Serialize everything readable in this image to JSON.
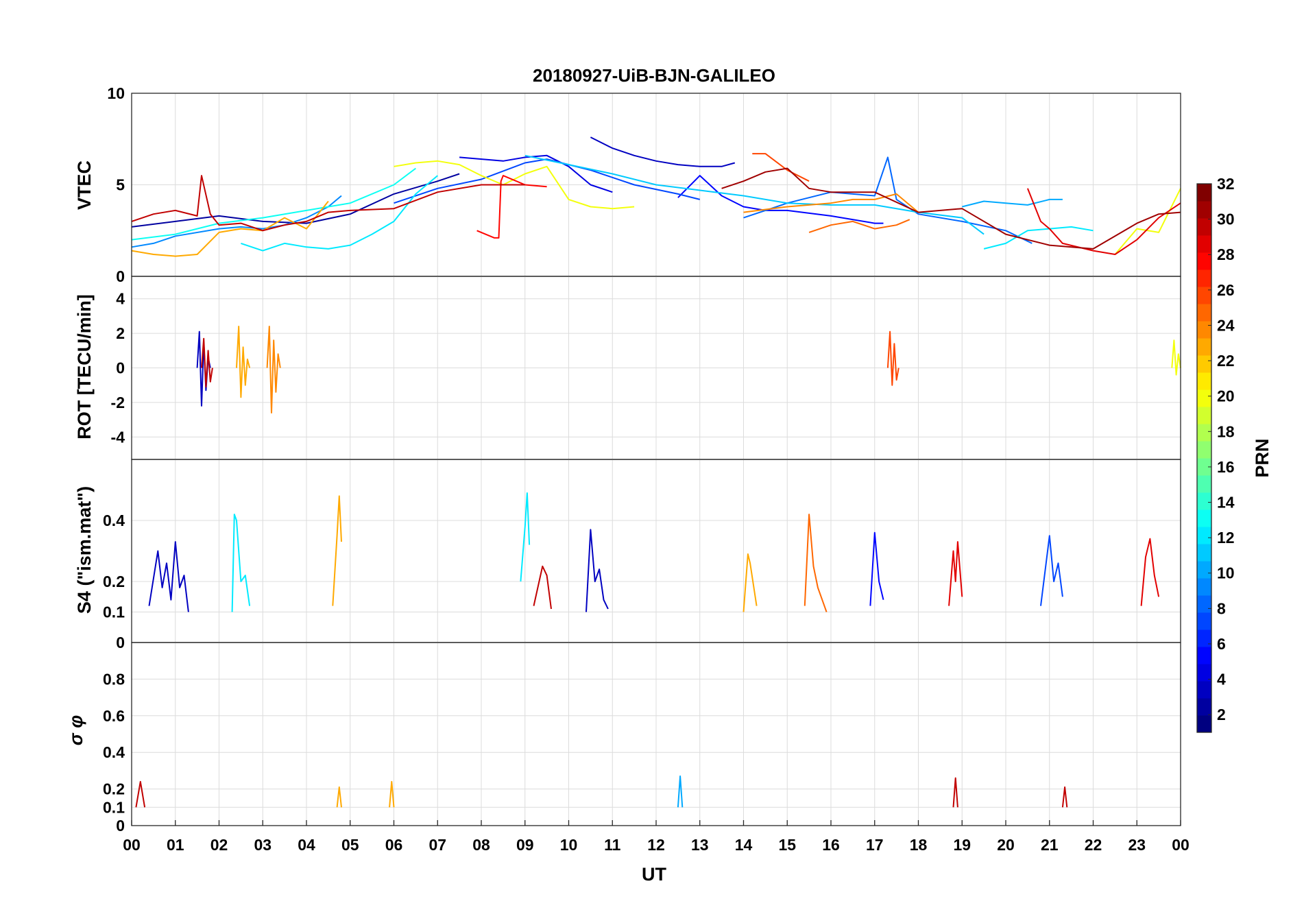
{
  "figure": {
    "title": "20180927-UiB-BJN-GALILEO",
    "x_ticks": [
      "00",
      "01",
      "02",
      "03",
      "04",
      "05",
      "06",
      "07",
      "08",
      "09",
      "10",
      "11",
      "12",
      "13",
      "14",
      "15",
      "16",
      "17",
      "18",
      "19",
      "20",
      "21",
      "22",
      "23",
      "00"
    ],
    "x_label": "UT",
    "colorbar": {
      "label": "PRN",
      "range": [
        1,
        32
      ],
      "ticks": [
        "2",
        "4",
        "6",
        "8",
        "10",
        "12",
        "14",
        "16",
        "18",
        "20",
        "22",
        "24",
        "26",
        "28",
        "30",
        "32"
      ],
      "colormap": "jet"
    }
  },
  "chart_data": [
    {
      "type": "line",
      "panel": "vtec",
      "ylabel": "VTEC",
      "ylim": [
        0,
        10
      ],
      "yticks": [
        "0",
        "5",
        "10"
      ],
      "xlim": [
        0,
        24
      ],
      "series": [
        {
          "prn": 2,
          "x": [
            0.0,
            1.0,
            2.0,
            3.0,
            4.0,
            5.0,
            6.0,
            7.0,
            7.5
          ],
          "values": [
            2.7,
            3.0,
            3.3,
            3.0,
            2.9,
            3.4,
            4.5,
            5.2,
            5.6
          ]
        },
        {
          "prn": 4,
          "x": [
            7.5,
            8.5,
            9.0,
            9.5,
            10.0,
            10.5,
            11.0
          ],
          "values": [
            6.5,
            6.3,
            6.5,
            6.6,
            6.0,
            5.0,
            4.6
          ]
        },
        {
          "prn": 3,
          "x": [
            10.5,
            11.0,
            11.5,
            12.0,
            12.5,
            13.0,
            13.5,
            13.8
          ],
          "values": [
            7.6,
            7.0,
            6.6,
            6.3,
            6.1,
            6.0,
            6.0,
            6.2
          ]
        },
        {
          "prn": 5,
          "x": [
            12.5,
            13.0,
            13.5,
            14.0,
            14.5,
            15.0,
            16.0,
            17.0,
            17.2
          ],
          "values": [
            4.3,
            5.5,
            4.4,
            3.8,
            3.6,
            3.6,
            3.3,
            2.9,
            2.9
          ]
        },
        {
          "prn": 7,
          "x": [
            6.0,
            7.0,
            8.0,
            9.0,
            9.5,
            10.5,
            11.5,
            12.5,
            13.0
          ],
          "values": [
            4.0,
            4.8,
            5.3,
            6.2,
            6.4,
            5.8,
            5.0,
            4.5,
            4.2
          ]
        },
        {
          "prn": 8,
          "x": [
            14.0,
            15.0,
            16.0,
            16.5,
            17.0,
            17.3,
            17.5,
            18.0,
            19.0,
            20.0,
            20.6
          ],
          "values": [
            3.2,
            4.0,
            4.6,
            4.5,
            4.4,
            6.5,
            4.2,
            3.4,
            3.0,
            2.5,
            1.8
          ]
        },
        {
          "prn": 9,
          "x": [
            0.0,
            0.5,
            1.0,
            2.0,
            2.5,
            3.0,
            3.5,
            4.0,
            4.5,
            4.8
          ],
          "values": [
            1.6,
            1.8,
            2.2,
            2.6,
            2.7,
            2.6,
            2.8,
            3.2,
            3.8,
            4.4
          ]
        },
        {
          "prn": 10,
          "x": [
            19.0,
            19.5,
            20.0,
            20.5,
            21.0,
            21.3
          ],
          "values": [
            3.8,
            4.1,
            4.0,
            3.9,
            4.2,
            4.2
          ]
        },
        {
          "prn": 11,
          "x": [
            9.0,
            10.0,
            11.0,
            12.0,
            13.0,
            14.0,
            15.0,
            16.0,
            17.0,
            18.0,
            19.0,
            19.5
          ],
          "values": [
            6.6,
            6.1,
            5.6,
            5.0,
            4.7,
            4.4,
            4.0,
            3.9,
            3.9,
            3.5,
            3.2,
            2.3
          ]
        },
        {
          "prn": 12,
          "x": [
            2.5,
            3.0,
            3.5,
            4.0,
            4.5,
            5.0,
            5.5,
            6.0,
            6.5,
            7.0
          ],
          "values": [
            1.8,
            1.4,
            1.8,
            1.6,
            1.5,
            1.7,
            2.3,
            3.0,
            4.5,
            5.5
          ]
        },
        {
          "prn": 13,
          "x": [
            0.0,
            1.0,
            2.0,
            3.0,
            4.0,
            5.0,
            6.0,
            6.5
          ],
          "values": [
            2.0,
            2.3,
            2.9,
            3.2,
            3.6,
            4.0,
            5.0,
            5.9
          ]
        },
        {
          "prn": 12,
          "x": [
            19.5,
            20.0,
            20.5,
            21.0,
            21.5,
            22.0
          ],
          "values": [
            1.5,
            1.8,
            2.5,
            2.6,
            2.7,
            2.5
          ]
        },
        {
          "prn": 20,
          "x": [
            6.0,
            6.5,
            7.0,
            7.5,
            8.0,
            8.5,
            9.0,
            9.5,
            10.0,
            10.5,
            11.0,
            11.5
          ],
          "values": [
            6.0,
            6.2,
            6.3,
            6.1,
            5.5,
            5.0,
            5.6,
            6.0,
            4.2,
            3.8,
            3.7,
            3.8
          ]
        },
        {
          "prn": 20,
          "x": [
            22.5,
            23.0,
            23.5,
            24.0
          ],
          "values": [
            1.2,
            2.6,
            2.4,
            4.8
          ]
        },
        {
          "prn": 23,
          "x": [
            0.0,
            0.5,
            1.0,
            1.5,
            2.0,
            2.5,
            3.0,
            3.5,
            4.0,
            4.5
          ],
          "values": [
            1.4,
            1.2,
            1.1,
            1.2,
            2.4,
            2.6,
            2.5,
            3.2,
            2.6,
            4.1
          ]
        },
        {
          "prn": 24,
          "x": [
            14.0,
            15.0,
            16.0,
            16.5,
            17.0,
            17.5,
            18.0
          ],
          "values": [
            3.5,
            3.8,
            4.0,
            4.2,
            4.2,
            4.5,
            3.5
          ]
        },
        {
          "prn": 25,
          "x": [
            15.5,
            16.0,
            16.5,
            17.0,
            17.5,
            17.8
          ],
          "values": [
            2.4,
            2.8,
            3.0,
            2.6,
            2.8,
            3.1
          ]
        },
        {
          "prn": 26,
          "x": [
            14.2,
            14.5,
            15.0,
            15.5
          ],
          "values": [
            6.7,
            6.7,
            5.8,
            5.2
          ]
        },
        {
          "prn": 28,
          "x": [
            7.9,
            8.3,
            8.4,
            8.45,
            8.5,
            9.0,
            9.5
          ],
          "values": [
            2.5,
            2.1,
            2.1,
            5.2,
            5.5,
            5.0,
            4.9
          ]
        },
        {
          "prn": 29,
          "x": [
            20.5,
            20.8,
            21.0,
            21.3,
            22.0,
            22.5,
            23.0,
            23.5,
            24.0
          ],
          "values": [
            4.8,
            3.0,
            2.6,
            1.8,
            1.4,
            1.2,
            2.0,
            3.2,
            4.0
          ]
        },
        {
          "prn": 30,
          "x": [
            0.0,
            0.5,
            1.0,
            1.5,
            1.6,
            1.8,
            2.0,
            2.5,
            3.0,
            3.5,
            4.0,
            4.5,
            5.0,
            6.0,
            7.0,
            8.0,
            9.0
          ],
          "values": [
            3.0,
            3.4,
            3.6,
            3.3,
            5.5,
            3.4,
            2.8,
            2.9,
            2.5,
            2.8,
            3.0,
            3.5,
            3.6,
            3.7,
            4.6,
            5.0,
            5.0
          ]
        },
        {
          "prn": 31,
          "x": [
            13.5,
            14.0,
            14.5,
            15.0,
            15.5,
            16.0,
            17.0,
            18.0,
            19.0,
            20.0,
            21.0,
            22.0,
            23.0,
            23.5,
            24.0
          ],
          "values": [
            4.8,
            5.2,
            5.7,
            5.9,
            4.8,
            4.6,
            4.6,
            3.5,
            3.7,
            2.3,
            1.7,
            1.5,
            2.9,
            3.4,
            3.5
          ]
        }
      ]
    },
    {
      "type": "line",
      "panel": "rot",
      "ylabel": "ROT [TECU/min]",
      "ylim": [
        -5.3,
        5.3
      ],
      "yticks": [
        "-4",
        "-2",
        "0",
        "2",
        "4"
      ],
      "xlim": [
        0,
        24
      ],
      "series": [
        {
          "prn": 3,
          "x": [
            1.5,
            1.55,
            1.6,
            1.65,
            1.7,
            1.75,
            1.8
          ],
          "values": [
            0.0,
            2.1,
            -2.2,
            1.5,
            -1.3,
            0.6,
            0.0
          ]
        },
        {
          "prn": 23,
          "x": [
            2.4,
            2.45,
            2.5,
            2.55,
            2.6,
            2.65,
            2.7
          ],
          "values": [
            0.0,
            2.4,
            -1.7,
            1.2,
            -1.0,
            0.5,
            0.0
          ]
        },
        {
          "prn": 24,
          "x": [
            3.1,
            3.15,
            3.2,
            3.25,
            3.3,
            3.35,
            3.4
          ],
          "values": [
            0.0,
            2.4,
            -2.6,
            1.6,
            -1.4,
            0.8,
            0.0
          ]
        },
        {
          "prn": 30,
          "x": [
            1.6,
            1.65,
            1.7,
            1.75,
            1.8,
            1.85
          ],
          "values": [
            0.0,
            1.7,
            -1.1,
            1.0,
            -0.8,
            0.0
          ]
        },
        {
          "prn": 26,
          "x": [
            17.3,
            17.35,
            17.4,
            17.45,
            17.5,
            17.55
          ],
          "values": [
            0.0,
            2.1,
            -1.0,
            1.4,
            -0.7,
            0.0
          ]
        },
        {
          "prn": 20,
          "x": [
            23.8,
            23.85,
            23.9,
            23.95,
            24.0
          ],
          "values": [
            0.0,
            1.6,
            -0.4,
            0.8,
            0.0
          ]
        }
      ]
    },
    {
      "type": "line",
      "panel": "s4",
      "ylabel": "S4 (\"ism.mat\")",
      "ylim": [
        0,
        0.6
      ],
      "yticks": [
        "0",
        "0.1",
        "0.2",
        "0.4"
      ],
      "xlim": [
        0,
        24
      ],
      "series": [
        {
          "prn": 3,
          "x": [
            0.4,
            0.6,
            0.7,
            0.8,
            0.9,
            1.0,
            1.1,
            1.2,
            1.3
          ],
          "values": [
            0.12,
            0.3,
            0.18,
            0.26,
            0.14,
            0.33,
            0.18,
            0.22,
            0.1
          ]
        },
        {
          "prn": 12,
          "x": [
            2.3,
            2.35,
            2.4,
            2.5,
            2.6,
            2.7
          ],
          "values": [
            0.1,
            0.42,
            0.4,
            0.2,
            0.22,
            0.12
          ]
        },
        {
          "prn": 23,
          "x": [
            4.6,
            4.7,
            4.75,
            4.8
          ],
          "values": [
            0.12,
            0.35,
            0.48,
            0.33
          ]
        },
        {
          "prn": 12,
          "x": [
            8.9,
            9.0,
            9.05,
            9.1
          ],
          "values": [
            0.2,
            0.38,
            0.49,
            0.32
          ]
        },
        {
          "prn": 3,
          "x": [
            10.4,
            10.5,
            10.6,
            10.7,
            10.8,
            10.9
          ],
          "values": [
            0.1,
            0.37,
            0.2,
            0.24,
            0.14,
            0.11
          ]
        },
        {
          "prn": 25,
          "x": [
            15.4,
            15.5,
            15.6,
            15.7,
            15.9
          ],
          "values": [
            0.12,
            0.42,
            0.25,
            0.18,
            0.1
          ]
        },
        {
          "prn": 5,
          "x": [
            16.9,
            17.0,
            17.1,
            17.2
          ],
          "values": [
            0.12,
            0.36,
            0.2,
            0.14
          ]
        },
        {
          "prn": 7,
          "x": [
            20.8,
            21.0,
            21.1,
            21.2,
            21.3
          ],
          "values": [
            0.12,
            0.35,
            0.2,
            0.26,
            0.15
          ]
        },
        {
          "prn": 29,
          "x": [
            23.1,
            23.2,
            23.3,
            23.4,
            23.5
          ],
          "values": [
            0.12,
            0.28,
            0.34,
            0.22,
            0.15
          ]
        },
        {
          "prn": 30,
          "x": [
            9.2,
            9.4,
            9.5,
            9.6
          ],
          "values": [
            0.12,
            0.25,
            0.22,
            0.11
          ]
        },
        {
          "prn": 29,
          "x": [
            18.7,
            18.8,
            18.85,
            18.9,
            19.0
          ],
          "values": [
            0.12,
            0.3,
            0.2,
            0.33,
            0.15
          ]
        },
        {
          "prn": 23,
          "x": [
            14.0,
            14.1,
            14.15,
            14.3
          ],
          "values": [
            0.1,
            0.29,
            0.26,
            0.12
          ]
        }
      ]
    },
    {
      "type": "line",
      "panel": "sigma_phi",
      "ylabel": "σ φ",
      "ylim": [
        0,
        1
      ],
      "yticks": [
        "0",
        "0.1",
        "0.2",
        "0.4",
        "0.6",
        "0.8"
      ],
      "xlim": [
        0,
        24
      ],
      "series": [
        {
          "prn": 30,
          "x": [
            0.1,
            0.2,
            0.3
          ],
          "values": [
            0.1,
            0.24,
            0.1
          ]
        },
        {
          "prn": 23,
          "x": [
            5.9,
            5.95,
            6.0
          ],
          "values": [
            0.1,
            0.24,
            0.1
          ]
        },
        {
          "prn": 10,
          "x": [
            12.5,
            12.55,
            12.6
          ],
          "values": [
            0.1,
            0.27,
            0.1
          ]
        },
        {
          "prn": 30,
          "x": [
            18.8,
            18.85,
            18.9
          ],
          "values": [
            0.1,
            0.26,
            0.1
          ]
        },
        {
          "prn": 23,
          "x": [
            4.7,
            4.75,
            4.8
          ],
          "values": [
            0.1,
            0.21,
            0.1
          ]
        },
        {
          "prn": 30,
          "x": [
            21.3,
            21.35,
            21.4
          ],
          "values": [
            0.1,
            0.21,
            0.1
          ]
        }
      ]
    }
  ]
}
